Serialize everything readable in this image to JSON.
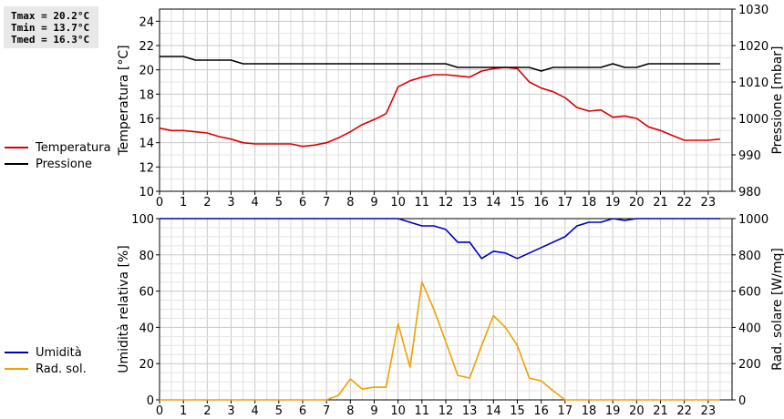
{
  "stats": {
    "tmax": "Tmax = 20.2°C",
    "tmin": "Tmin = 13.7°C",
    "tmed": "Tmed = 16.3°C"
  },
  "chart_data": [
    {
      "type": "line",
      "xlabel": "",
      "x_ticks": [
        0,
        1,
        2,
        3,
        4,
        5,
        6,
        7,
        8,
        9,
        10,
        11,
        12,
        13,
        14,
        15,
        16,
        17,
        18,
        19,
        20,
        21,
        22,
        23
      ],
      "xlim": [
        0,
        24
      ],
      "ylabel": "Temperatura [°C]",
      "ylim": [
        10,
        25
      ],
      "y_ticks": [
        10,
        12,
        14,
        16,
        18,
        20,
        22,
        24
      ],
      "y2label": "Pressione [mbar]",
      "y2lim": [
        980,
        1030
      ],
      "y2_ticks": [
        980,
        990,
        1000,
        1010,
        1020,
        1030
      ],
      "grid": true,
      "legend_position": "left",
      "series": [
        {
          "name": "Temperatura",
          "color": "#dd0000",
          "axis": "left",
          "x": [
            0,
            0.5,
            1,
            1.5,
            2,
            2.5,
            3,
            3.5,
            4,
            4.5,
            5,
            5.5,
            6,
            6.5,
            7,
            7.5,
            8,
            8.5,
            9,
            9.5,
            10,
            10.5,
            11,
            11.5,
            12,
            12.5,
            13,
            13.5,
            14,
            14.5,
            15,
            15.5,
            16,
            16.5,
            17,
            17.5,
            18,
            18.5,
            19,
            19.5,
            20,
            20.5,
            21,
            21.5,
            22,
            22.5,
            23,
            23.5
          ],
          "values": [
            15.2,
            15.0,
            15.0,
            14.9,
            14.8,
            14.5,
            14.3,
            14.0,
            13.9,
            13.9,
            13.9,
            13.9,
            13.7,
            13.8,
            14.0,
            14.4,
            14.9,
            15.5,
            15.9,
            16.4,
            18.6,
            19.1,
            19.4,
            19.6,
            19.6,
            19.5,
            19.4,
            19.9,
            20.1,
            20.2,
            20.1,
            19.0,
            18.5,
            18.2,
            17.7,
            16.9,
            16.6,
            16.7,
            16.1,
            16.2,
            16.0,
            15.3,
            15.0,
            14.6,
            14.2,
            14.2,
            14.2,
            14.3
          ]
        },
        {
          "name": "Pressione",
          "color": "#000000",
          "axis": "right",
          "x": [
            0,
            1,
            1.5,
            2,
            3,
            3.5,
            4,
            5,
            6,
            7,
            8,
            9,
            10,
            11,
            12,
            12.5,
            13,
            14,
            15,
            15.5,
            16,
            16.5,
            17,
            18,
            18.5,
            19,
            19.5,
            20,
            20.5,
            21,
            22,
            23,
            23.5
          ],
          "values": [
            1017,
            1017,
            1016,
            1016,
            1016,
            1015,
            1015,
            1015,
            1015,
            1015,
            1015,
            1015,
            1015,
            1015,
            1015,
            1014,
            1014,
            1014,
            1014,
            1014,
            1013,
            1014,
            1014,
            1014,
            1014,
            1015,
            1014,
            1014,
            1015,
            1015,
            1015,
            1015,
            1015
          ]
        }
      ]
    },
    {
      "type": "line",
      "xlabel": "",
      "x_ticks": [
        0,
        1,
        2,
        3,
        4,
        5,
        6,
        7,
        8,
        9,
        10,
        11,
        12,
        13,
        14,
        15,
        16,
        17,
        18,
        19,
        20,
        21,
        22,
        23
      ],
      "xlim": [
        0,
        24
      ],
      "ylabel": "Umidità relativa [%]",
      "ylim": [
        0,
        100
      ],
      "y_ticks": [
        0,
        20,
        40,
        60,
        80,
        100
      ],
      "y2label": "Rad. solare [W/mq]",
      "y2lim": [
        0,
        1000
      ],
      "y2_ticks": [
        0,
        200,
        400,
        600,
        800,
        1000
      ],
      "grid": true,
      "legend_position": "left",
      "series": [
        {
          "name": "Umidità",
          "color": "#0000bb",
          "axis": "left",
          "x": [
            0,
            10,
            11,
            11.5,
            12,
            12.5,
            13,
            13.5,
            14,
            14.5,
            15,
            16,
            17,
            17.5,
            18,
            18.5,
            19,
            19.5,
            20,
            23.5
          ],
          "values": [
            100,
            100,
            96,
            96,
            94,
            87,
            87,
            78,
            82,
            81,
            78,
            84,
            90,
            96,
            98,
            98,
            100,
            99,
            100,
            100
          ]
        },
        {
          "name": "Rad. sol.",
          "color": "#f0a000",
          "axis": "right",
          "x": [
            0,
            7,
            7.5,
            8,
            8.5,
            9,
            9.5,
            10,
            10.5,
            11,
            11.5,
            12,
            12.5,
            13,
            13.5,
            14,
            14.5,
            15,
            15.5,
            16,
            16.5,
            17,
            23.5
          ],
          "values": [
            0,
            0,
            25,
            115,
            60,
            70,
            70,
            420,
            180,
            650,
            500,
            320,
            135,
            120,
            300,
            465,
            400,
            300,
            120,
            105,
            50,
            0,
            0
          ]
        }
      ]
    }
  ]
}
